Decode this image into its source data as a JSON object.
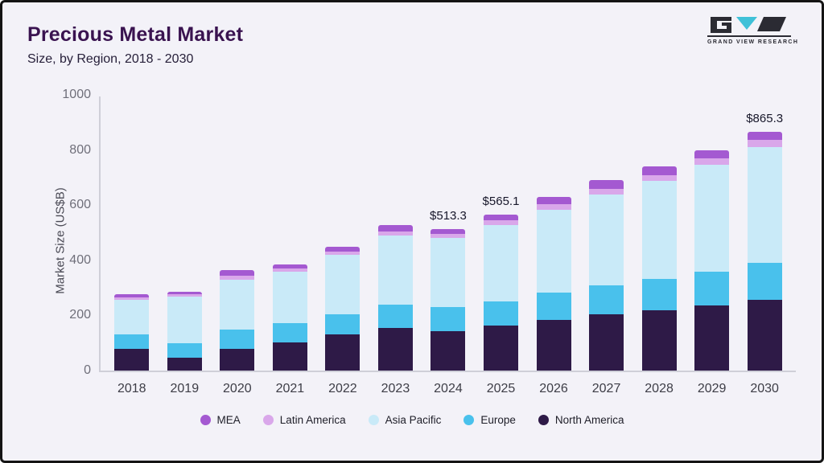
{
  "header": {
    "title": "Precious Metal Market",
    "subtitle": "Size, by Region, 2018 - 2030"
  },
  "logo": {
    "text": "GRAND VIEW RESEARCH",
    "accent_color": "#3fc1d8",
    "dark_color": "#2b2b33"
  },
  "chart_data": {
    "type": "bar",
    "stacked": true,
    "title": "Precious Metal Market Size, by Region, 2018 - 2030",
    "xlabel": "",
    "ylabel": "Market Size (US$B)",
    "ylim": [
      0,
      1000
    ],
    "yticks": [
      0,
      200,
      400,
      600,
      800,
      1000
    ],
    "grid": false,
    "legend_position": "bottom",
    "categories": [
      "2018",
      "2019",
      "2020",
      "2021",
      "2022",
      "2023",
      "2024",
      "2025",
      "2026",
      "2027",
      "2028",
      "2029",
      "2030"
    ],
    "series": [
      {
        "name": "North America",
        "color": "#2e1a47",
        "values": [
          78,
          48,
          80,
          103,
          130,
          155,
          143,
          162,
          183,
          203,
          220,
          237,
          257
        ]
      },
      {
        "name": "Europe",
        "color": "#49c1ec",
        "values": [
          52,
          52,
          70,
          70,
          75,
          85,
          87,
          90,
          100,
          105,
          112,
          123,
          135
        ]
      },
      {
        "name": "Asia Pacific",
        "color": "#c9eaf8",
        "values": [
          128,
          168,
          180,
          185,
          215,
          250,
          250,
          275,
          300,
          330,
          355,
          385,
          420
        ]
      },
      {
        "name": "Latin America",
        "color": "#d9a7ea",
        "values": [
          8,
          8,
          15,
          12,
          12,
          15,
          15,
          18,
          20,
          22,
          23,
          25,
          25
        ]
      },
      {
        "name": "MEA",
        "color": "#a459d1",
        "values": [
          10,
          10,
          20,
          15,
          16,
          23,
          18.3,
          20.1,
          27,
          30,
          30,
          30,
          28.3
        ]
      }
    ],
    "totals_shown": [
      {
        "category": "2024",
        "label": "$513.3"
      },
      {
        "category": "2025",
        "label": "$565.1"
      },
      {
        "category": "2030",
        "label": "$865.3"
      }
    ],
    "legend_order": [
      "MEA",
      "Latin America",
      "Asia Pacific",
      "Europe",
      "North America"
    ]
  }
}
